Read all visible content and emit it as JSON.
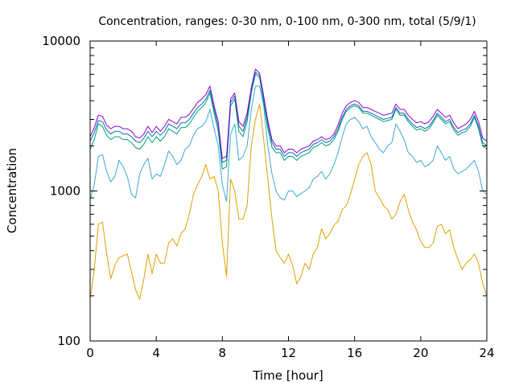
{
  "chart_data": {
    "type": "line",
    "title": "Concentration, ranges: 0-30 nm, 0-100 nm, 0-300 nm, total (5/9/1)",
    "xlabel": "Time [hour]",
    "ylabel": "Concentration",
    "xlim": [
      0,
      24
    ],
    "ylim": [
      100,
      10000
    ],
    "yscale": "log",
    "grid": false,
    "xticks": [
      0,
      4,
      8,
      12,
      16,
      20,
      24
    ],
    "xtick_labels": [
      "0",
      "4",
      "8",
      "12",
      "16",
      "20",
      "24"
    ],
    "yticks": [
      100,
      1000,
      10000
    ],
    "ytick_labels": [
      "100",
      "1000",
      "10000"
    ],
    "x": [
      0,
      0.25,
      0.5,
      0.75,
      1,
      1.25,
      1.5,
      1.75,
      2,
      2.25,
      2.5,
      2.75,
      3,
      3.25,
      3.5,
      3.75,
      4,
      4.25,
      4.5,
      4.75,
      5,
      5.25,
      5.5,
      5.75,
      6,
      6.25,
      6.5,
      6.75,
      7,
      7.25,
      7.5,
      7.75,
      8,
      8.25,
      8.5,
      8.75,
      9,
      9.25,
      9.5,
      9.75,
      10,
      10.25,
      10.5,
      10.75,
      11,
      11.25,
      11.5,
      11.75,
      12,
      12.25,
      12.5,
      12.75,
      13,
      13.25,
      13.5,
      13.75,
      14,
      14.25,
      14.5,
      14.75,
      15,
      15.25,
      15.5,
      15.75,
      16,
      16.25,
      16.5,
      16.75,
      17,
      17.25,
      17.5,
      17.75,
      18,
      18.25,
      18.5,
      18.75,
      19,
      19.25,
      19.5,
      19.75,
      20,
      20.25,
      20.5,
      20.75,
      21,
      21.25,
      21.5,
      21.75,
      22,
      22.25,
      22.5,
      22.75,
      23,
      23.25,
      23.5,
      23.75,
      24
    ],
    "series": [
      {
        "color": "#e0a000",
        "values": [
          190,
          300,
          600,
          620,
          380,
          260,
          320,
          360,
          370,
          380,
          290,
          220,
          190,
          260,
          380,
          280,
          380,
          330,
          330,
          450,
          480,
          430,
          520,
          560,
          700,
          950,
          1100,
          1250,
          1500,
          1200,
          1250,
          1000,
          450,
          270,
          1200,
          1000,
          650,
          650,
          800,
          2000,
          3000,
          3800,
          2200,
          1200,
          650,
          400,
          360,
          330,
          380,
          320,
          240,
          270,
          330,
          300,
          380,
          420,
          560,
          480,
          520,
          590,
          630,
          750,
          800,
          950,
          1200,
          1500,
          1700,
          1800,
          1500,
          1000,
          900,
          800,
          750,
          650,
          700,
          850,
          950,
          750,
          620,
          550,
          460,
          420,
          420,
          450,
          580,
          600,
          520,
          550,
          420,
          350,
          300,
          330,
          350,
          380,
          330,
          240,
          200
        ]
      },
      {
        "color": "#3aa9d2",
        "values": [
          880,
          1100,
          1700,
          1750,
          1350,
          1150,
          1250,
          1600,
          1450,
          1250,
          950,
          900,
          1300,
          1500,
          1650,
          1200,
          1300,
          1250,
          1500,
          1850,
          1700,
          1500,
          1600,
          1900,
          2000,
          2350,
          2600,
          2700,
          2900,
          3500,
          2600,
          2000,
          1100,
          850,
          2400,
          2800,
          1600,
          1700,
          2000,
          3500,
          5000,
          5000,
          3700,
          2000,
          1300,
          1000,
          900,
          870,
          1000,
          1000,
          920,
          960,
          1000,
          1050,
          1200,
          1250,
          1350,
          1200,
          1300,
          1500,
          1800,
          2300,
          2800,
          3000,
          3100,
          2900,
          2600,
          2700,
          2300,
          2100,
          1900,
          1800,
          2000,
          2100,
          2800,
          2500,
          2200,
          1800,
          1700,
          1550,
          1600,
          1450,
          1500,
          1600,
          2000,
          1800,
          1600,
          1700,
          1400,
          1300,
          1350,
          1400,
          1500,
          1600,
          1350,
          1000,
          950
        ]
      },
      {
        "color": "#009e73",
        "values": [
          1900,
          2200,
          2800,
          2700,
          2350,
          2200,
          2300,
          2300,
          2200,
          2200,
          2100,
          1950,
          1900,
          2050,
          2300,
          2100,
          2300,
          2150,
          2300,
          2600,
          2500,
          2400,
          2650,
          2650,
          2800,
          3100,
          3400,
          3600,
          3900,
          4500,
          3300,
          2500,
          1400,
          1450,
          3700,
          4100,
          2500,
          2300,
          2900,
          4500,
          6000,
          5700,
          3900,
          2600,
          1950,
          1800,
          1800,
          1600,
          1700,
          1700,
          1600,
          1700,
          1750,
          1800,
          1950,
          2000,
          2100,
          2000,
          2050,
          2200,
          2500,
          3000,
          3400,
          3600,
          3700,
          3600,
          3300,
          3300,
          3200,
          3100,
          3000,
          2900,
          2950,
          3000,
          3500,
          3200,
          3200,
          2900,
          2700,
          2550,
          2600,
          2500,
          2600,
          2850,
          3200,
          3000,
          2800,
          2900,
          2550,
          2350,
          2450,
          2500,
          2700,
          3100,
          2600,
          2000,
          1900
        ]
      },
      {
        "color": "#0072b2",
        "values": [
          2150,
          2450,
          2950,
          2900,
          2550,
          2400,
          2500,
          2500,
          2400,
          2400,
          2300,
          2150,
          2100,
          2250,
          2500,
          2300,
          2500,
          2350,
          2500,
          2800,
          2700,
          2600,
          2850,
          2850,
          3000,
          3300,
          3600,
          3800,
          4100,
          4700,
          3500,
          2700,
          1550,
          1600,
          3900,
          4300,
          2700,
          2500,
          3100,
          4700,
          6200,
          5900,
          4100,
          2800,
          2100,
          1900,
          1900,
          1700,
          1800,
          1800,
          1700,
          1800,
          1850,
          1900,
          2050,
          2100,
          2200,
          2100,
          2150,
          2300,
          2600,
          3100,
          3500,
          3700,
          3800,
          3700,
          3400,
          3400,
          3300,
          3200,
          3100,
          3000,
          3050,
          3100,
          3600,
          3300,
          3300,
          3000,
          2800,
          2650,
          2700,
          2600,
          2700,
          2950,
          3300,
          3100,
          2900,
          3000,
          2650,
          2450,
          2550,
          2600,
          2800,
          3200,
          2700,
          2100,
          2000
        ]
      },
      {
        "color": "#9400d3",
        "values": [
          2300,
          2650,
          3200,
          3150,
          2750,
          2600,
          2700,
          2700,
          2600,
          2600,
          2500,
          2300,
          2250,
          2400,
          2700,
          2450,
          2700,
          2500,
          2700,
          3000,
          2900,
          2800,
          3100,
          3100,
          3250,
          3550,
          3900,
          4100,
          4400,
          5000,
          3700,
          2900,
          1650,
          1700,
          4100,
          4500,
          2900,
          2700,
          3300,
          4900,
          6500,
          6100,
          4300,
          2950,
          2200,
          2000,
          2000,
          1800,
          1900,
          1900,
          1800,
          1900,
          1950,
          2000,
          2150,
          2200,
          2300,
          2200,
          2250,
          2400,
          2750,
          3300,
          3700,
          3900,
          4000,
          3900,
          3600,
          3600,
          3500,
          3400,
          3300,
          3200,
          3250,
          3300,
          3800,
          3500,
          3500,
          3200,
          3000,
          2850,
          2900,
          2800,
          2900,
          3150,
          3500,
          3300,
          3100,
          3200,
          2850,
          2600,
          2700,
          2800,
          3000,
          3400,
          2900,
          2250,
          2150
        ]
      }
    ]
  }
}
